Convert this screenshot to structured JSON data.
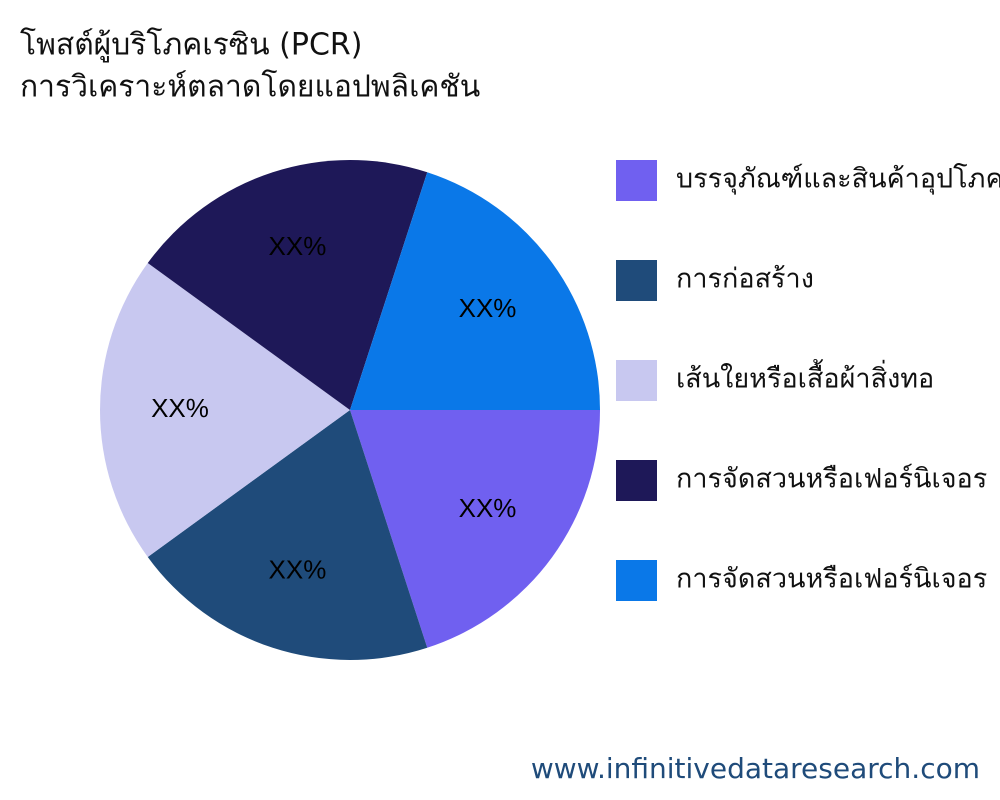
{
  "chart_data": {
    "type": "pie",
    "title": [
      "โพสต์ผู้บริโภคเรซิน (PCR)",
      "การวิเคราะห์ตลาดโดยแอปพลิเคชัน"
    ],
    "series": [
      {
        "name": "บรรจุภัณฑ์และสินค้าอุปโภค",
        "color": "#7060f0",
        "values": [
          20
        ],
        "value_labels": [
          "XX%"
        ]
      },
      {
        "name": "การก่อสร้าง",
        "color": "#1f4b7a",
        "values": [
          20
        ],
        "value_labels": [
          "XX%"
        ]
      },
      {
        "name": "เส้นใยหรือเสื้อผ้าสิ่งทอ",
        "color": "#c8c8f0",
        "values": [
          20
        ],
        "value_labels": [
          "XX%"
        ]
      },
      {
        "name": "การจัดสวนหรือเฟอร์นิเจอร",
        "color": "#1e1858",
        "values": [
          20
        ],
        "value_labels": [
          "XX%"
        ]
      },
      {
        "name": "การจัดสวนหรือเฟอร์นิเจอร",
        "color": "#0a78e8",
        "values": [
          20
        ],
        "value_labels": [
          "XX%"
        ]
      }
    ],
    "legend": "right"
  },
  "footer": "www.infinitivedataresearch.com"
}
